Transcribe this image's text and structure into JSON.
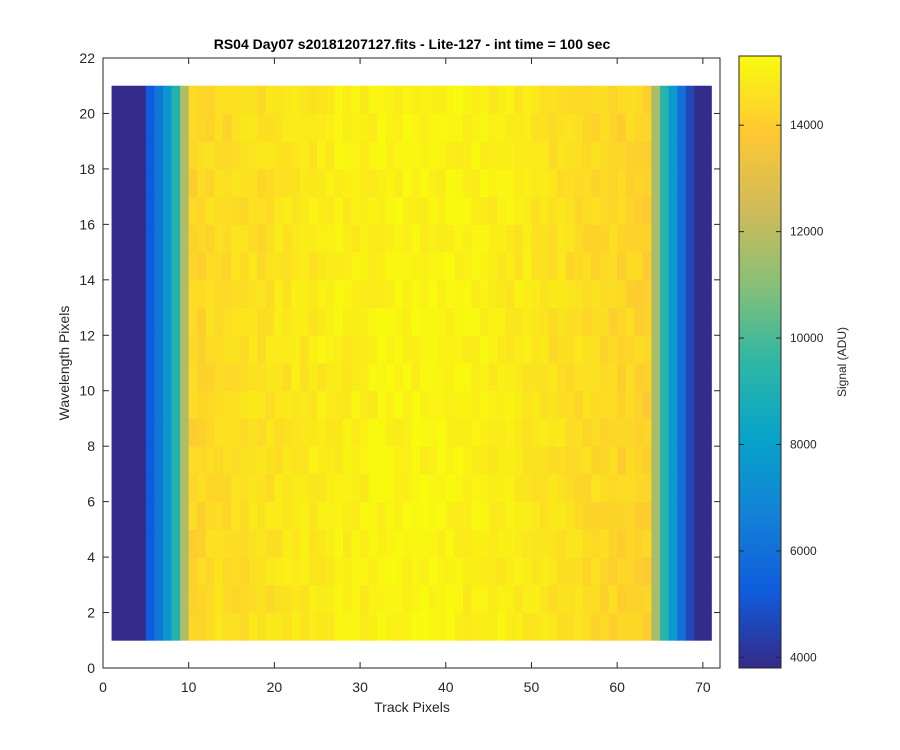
{
  "chart_data": {
    "type": "heatmap",
    "title": "RS04 Day07  s20181207127.fits - Lite-127 - int time = 100 sec",
    "xlabel": "Track Pixels",
    "ylabel": "Wavelength Pixels",
    "xlim": [
      0,
      72
    ],
    "ylim": [
      0,
      22
    ],
    "xticks": [
      0,
      10,
      20,
      30,
      40,
      50,
      60,
      70
    ],
    "yticks": [
      0,
      2,
      4,
      6,
      8,
      10,
      12,
      14,
      16,
      18,
      20,
      22
    ],
    "x_range": [
      1,
      71
    ],
    "y_range": [
      1,
      21
    ],
    "n_cols": 70,
    "n_rows": 20,
    "column_profile_adu": [
      3850,
      3850,
      3850,
      3850,
      5200,
      6200,
      7500,
      9200,
      11800,
      14200,
      14300,
      14400,
      14500,
      14400,
      14500,
      14500,
      14600,
      14500,
      14600,
      14700,
      14700,
      14800,
      14800,
      14800,
      14900,
      14900,
      15000,
      14900,
      15000,
      15000,
      15000,
      15100,
      15100,
      15100,
      15100,
      15100,
      15100,
      15200,
      15100,
      15100,
      15100,
      15000,
      15000,
      15000,
      14900,
      14900,
      14900,
      14800,
      14800,
      14700,
      14700,
      14600,
      14600,
      14500,
      14500,
      14400,
      14400,
      14300,
      14300,
      14200,
      14300,
      14200,
      14100,
      11600,
      9300,
      7700,
      6000,
      4600,
      3850,
      3850
    ],
    "row_noise_amplitude_adu": 250,
    "colorbar": {
      "label": "Signal (ADU)",
      "range": [
        3800,
        15300
      ],
      "ticks": [
        4000,
        6000,
        8000,
        10000,
        12000,
        14000
      ],
      "colormap": "parula",
      "stops": [
        "#352a87",
        "#0f5cdd",
        "#1481d6",
        "#06a4ca",
        "#2eb7a4",
        "#87bf77",
        "#d1bb59",
        "#fec832",
        "#f9fb0e"
      ]
    }
  }
}
